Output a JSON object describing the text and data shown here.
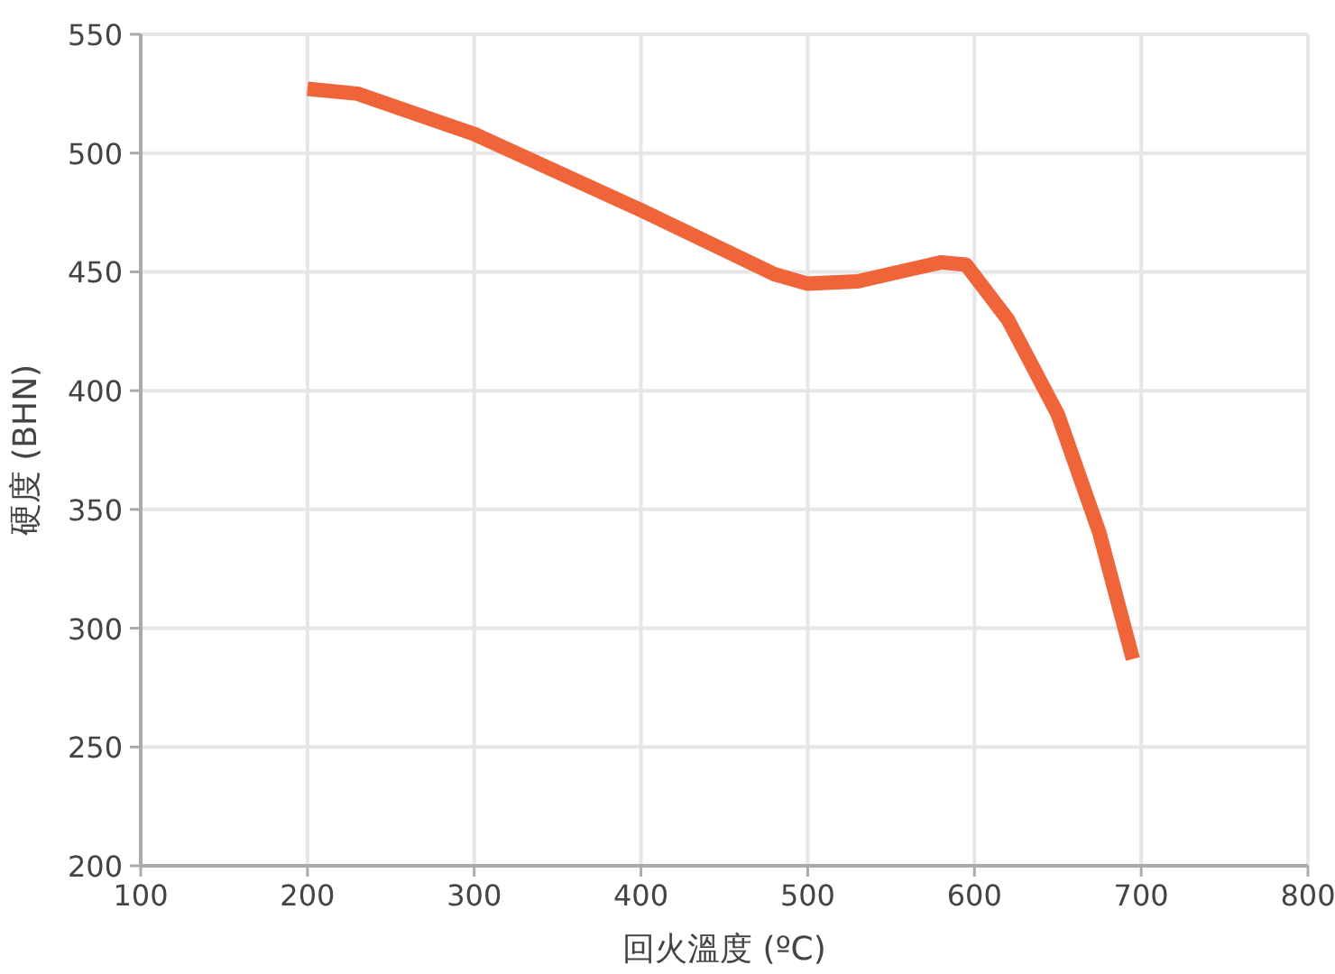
{
  "chart_data": {
    "type": "line",
    "xlabel": "回火溫度 (ºC)",
    "ylabel": "硬度 (BHN)",
    "x": [
      200,
      230,
      300,
      400,
      480,
      500,
      530,
      580,
      595,
      620,
      650,
      675,
      695
    ],
    "series": [
      {
        "color": "#f0643a",
        "values": [
          527,
          525,
          508,
          476,
          449,
          445,
          446,
          454,
          453,
          430,
          390,
          340,
          287
        ]
      }
    ],
    "xlim": [
      100,
      800
    ],
    "xticks": [
      100,
      200,
      300,
      400,
      500,
      600,
      700,
      800
    ],
    "ylim": [
      200,
      550
    ],
    "yticks": [
      200,
      250,
      300,
      350,
      400,
      450,
      500,
      550
    ],
    "grid": true,
    "marker": "none",
    "line_style": "solid"
  }
}
